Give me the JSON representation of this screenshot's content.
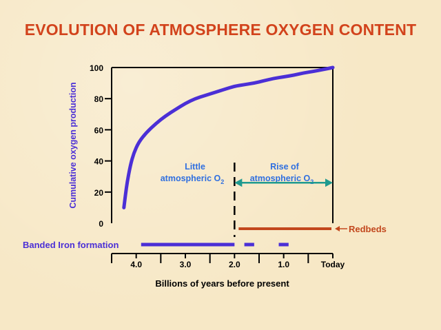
{
  "title": "EVOLUTION OF ATMOSPHERE OXYGEN CONTENT",
  "colors": {
    "title": "#d2431c",
    "curve": "#4b2fd6",
    "note_text": "#2f6fe0",
    "arrow": "#1f9a8f",
    "redbeds": "#c2471d",
    "banded_iron": "#4b2fd6",
    "axis": "#000000"
  },
  "chart_data": {
    "type": "line",
    "xlabel": "Billions of years before present",
    "ylabel": "Cumulative oxygen production",
    "xlim": [
      4.5,
      0
    ],
    "ylim": [
      0,
      100
    ],
    "x_ticks": [
      {
        "value": 4.0,
        "label": "4.0"
      },
      {
        "value": 3.0,
        "label": "3.0"
      },
      {
        "value": 2.0,
        "label": "2.0"
      },
      {
        "value": 1.0,
        "label": "1.0"
      },
      {
        "value": 0,
        "label": "Today"
      }
    ],
    "x_minor_ticks": [
      4.5,
      3.5,
      2.5,
      1.5,
      0.5
    ],
    "y_ticks": [
      {
        "value": 0,
        "label": "0"
      },
      {
        "value": 20,
        "label": "20"
      },
      {
        "value": 40,
        "label": "40"
      },
      {
        "value": 60,
        "label": "60"
      },
      {
        "value": 80,
        "label": "80"
      },
      {
        "value": 100,
        "label": "100"
      }
    ],
    "series": [
      {
        "x": [
          4.25,
          4.22,
          4.18,
          4.12,
          4.05,
          3.95,
          3.8,
          3.6,
          3.4,
          3.2,
          3.0,
          2.8,
          2.6,
          2.4,
          2.2,
          2.0,
          1.8,
          1.6,
          1.4,
          1.2,
          1.0,
          0.8,
          0.6,
          0.4,
          0.2,
          0.0
        ],
        "y": [
          10,
          18,
          27,
          37,
          45,
          52,
          58,
          64,
          69,
          73,
          77,
          80,
          82,
          84,
          86,
          88,
          89,
          90,
          91.5,
          93,
          94,
          95,
          96.5,
          97.5,
          98.7,
          100
        ]
      }
    ],
    "divider_x": 2.0,
    "annotations": {
      "left": {
        "line1": "Little",
        "line2": "atmospheric O",
        "sub": "2"
      },
      "right": {
        "line1": "Rise of",
        "line2": "atmospheric O",
        "sub": "2"
      }
    },
    "rise_arrow": {
      "from": 2.0,
      "to": 0,
      "y": 26
    },
    "redbeds": {
      "label": "Redbeds",
      "start": 2.0,
      "end": 0
    },
    "banded_iron": {
      "label": "Banded Iron formation",
      "segments": [
        [
          3.9,
          2.0
        ],
        [
          1.8,
          1.6
        ],
        [
          1.1,
          0.9
        ]
      ]
    }
  }
}
